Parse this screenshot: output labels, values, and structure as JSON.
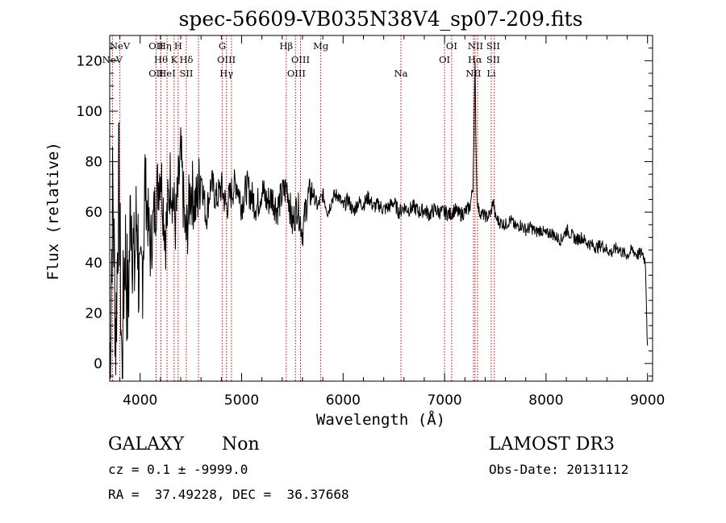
{
  "chart_data": {
    "type": "line",
    "title": "spec-56609-VB035N38V4_sp07-209.fits",
    "xlabel": "Wavelength (Å)",
    "ylabel": "Flux (relative)",
    "xlim": [
      3700,
      9050
    ],
    "ylim": [
      -7,
      130
    ],
    "xticks": [
      4000,
      5000,
      6000,
      7000,
      8000,
      9000
    ],
    "yticks": [
      0,
      20,
      40,
      60,
      80,
      100,
      120
    ],
    "line_color": "#000000",
    "marker_color": "#cc0000",
    "lines": [
      {
        "name": "NeV",
        "x": 3727,
        "row": 1
      },
      {
        "name": "NeV",
        "x": 3800,
        "row": 0
      },
      {
        "name": "OII",
        "x": 4157,
        "row": 2
      },
      {
        "name": "OII",
        "x": 4157,
        "row": 0
      },
      {
        "name": "Hθ",
        "x": 4205,
        "row": 1
      },
      {
        "name": "Hη",
        "x": 4243,
        "row": 0
      },
      {
        "name": "HeI",
        "x": 4265,
        "row": 2
      },
      {
        "name": "K",
        "x": 4335,
        "row": 1
      },
      {
        "name": "H",
        "x": 4375,
        "row": 0
      },
      {
        "name": "Hδ",
        "x": 4455,
        "row": 1
      },
      {
        "name": "SII",
        "x": 4455,
        "row": 2
      },
      {
        "name": "G",
        "x": 4810,
        "row": 0
      },
      {
        "name": "OIII",
        "x": 4850,
        "row": 1
      },
      {
        "name": "Hγ",
        "x": 4850,
        "row": 2
      },
      {
        "name": "Hβ",
        "x": 5440,
        "row": 0
      },
      {
        "name": "OIII",
        "x": 5580,
        "row": 1
      },
      {
        "name": "OIII",
        "x": 5540,
        "row": 2
      },
      {
        "name": "Mg",
        "x": 5780,
        "row": 0
      },
      {
        "name": "Na",
        "x": 6570,
        "row": 2
      },
      {
        "name": "OI",
        "x": 7070,
        "row": 0
      },
      {
        "name": "OI",
        "x": 7000,
        "row": 1
      },
      {
        "name": "NII",
        "x": 7305,
        "row": 0
      },
      {
        "name": "Hα",
        "x": 7300,
        "row": 1
      },
      {
        "name": "NII",
        "x": 7285,
        "row": 2
      },
      {
        "name": "SII",
        "x": 7480,
        "row": 0
      },
      {
        "name": "SII",
        "x": 7480,
        "row": 1
      },
      {
        "name": "Li",
        "x": 7460,
        "row": 2
      }
    ],
    "marker_x": [
      3727,
      3800,
      4157,
      4205,
      4265,
      4335,
      4375,
      4455,
      4575,
      4810,
      4850,
      4900,
      5440,
      5530,
      5580,
      5780,
      6570,
      7000,
      7070,
      7285,
      7300,
      7325,
      7460,
      7490
    ],
    "spectrum": {
      "x": [
        3700,
        3730,
        3760,
        3790,
        3820,
        3850,
        3880,
        3910,
        3940,
        3970,
        4000,
        4050,
        4100,
        4150,
        4200,
        4250,
        4300,
        4350,
        4400,
        4450,
        4500,
        4550,
        4600,
        4650,
        4700,
        4750,
        4800,
        4850,
        4900,
        4950,
        5000,
        5050,
        5100,
        5150,
        5200,
        5250,
        5300,
        5350,
        5400,
        5450,
        5500,
        5550,
        5600,
        5650,
        5700,
        5750,
        5800,
        5850,
        5900,
        5950,
        6000,
        6050,
        6100,
        6150,
        6200,
        6250,
        6300,
        6350,
        6400,
        6450,
        6500,
        6550,
        6600,
        6650,
        6700,
        6750,
        6800,
        6850,
        6900,
        6950,
        7000,
        7050,
        7100,
        7150,
        7200,
        7250,
        7280,
        7300,
        7310,
        7320,
        7340,
        7380,
        7420,
        7460,
        7480,
        7500,
        7540,
        7600,
        7650,
        7700,
        7750,
        7800,
        7850,
        7900,
        7950,
        8000,
        8050,
        8100,
        8150,
        8200,
        8250,
        8300,
        8350,
        8400,
        8450,
        8500,
        8550,
        8600,
        8650,
        8700,
        8750,
        8800,
        8850,
        8900,
        8950,
        8980,
        9000
      ],
      "y": [
        -5,
        70,
        10,
        75,
        -3,
        50,
        20,
        68,
        35,
        60,
        18,
        72,
        45,
        63,
        78,
        50,
        75,
        55,
        82,
        48,
        70,
        62,
        76,
        58,
        72,
        65,
        70,
        62,
        68,
        72,
        63,
        70,
        66,
        62,
        69,
        64,
        66,
        61,
        67,
        70,
        55,
        63,
        52,
        66,
        68,
        62,
        67,
        60,
        66,
        67,
        62,
        65,
        60,
        64,
        63,
        66,
        62,
        63,
        61,
        62,
        64,
        60,
        62,
        61,
        62,
        60,
        61,
        59,
        61,
        60,
        60,
        59,
        61,
        59,
        60,
        62,
        70,
        118,
        85,
        65,
        60,
        59,
        58,
        60,
        65,
        58,
        56,
        55,
        57,
        54,
        55,
        53,
        54,
        52,
        53,
        51,
        52,
        50,
        49,
        53,
        51,
        49,
        50,
        48,
        47,
        46,
        47,
        45,
        44,
        46,
        44,
        43,
        45,
        43,
        44,
        40,
        5
      ]
    }
  },
  "info": {
    "object_class": "GALAXY",
    "subclass": "Non",
    "survey": "LAMOST DR3",
    "cz_line": "cz = 0.1 ± -9999.0",
    "obs_date_line": "Obs-Date: 20131112",
    "coords_line": "RA =  37.49228, DEC =  36.37668"
  }
}
